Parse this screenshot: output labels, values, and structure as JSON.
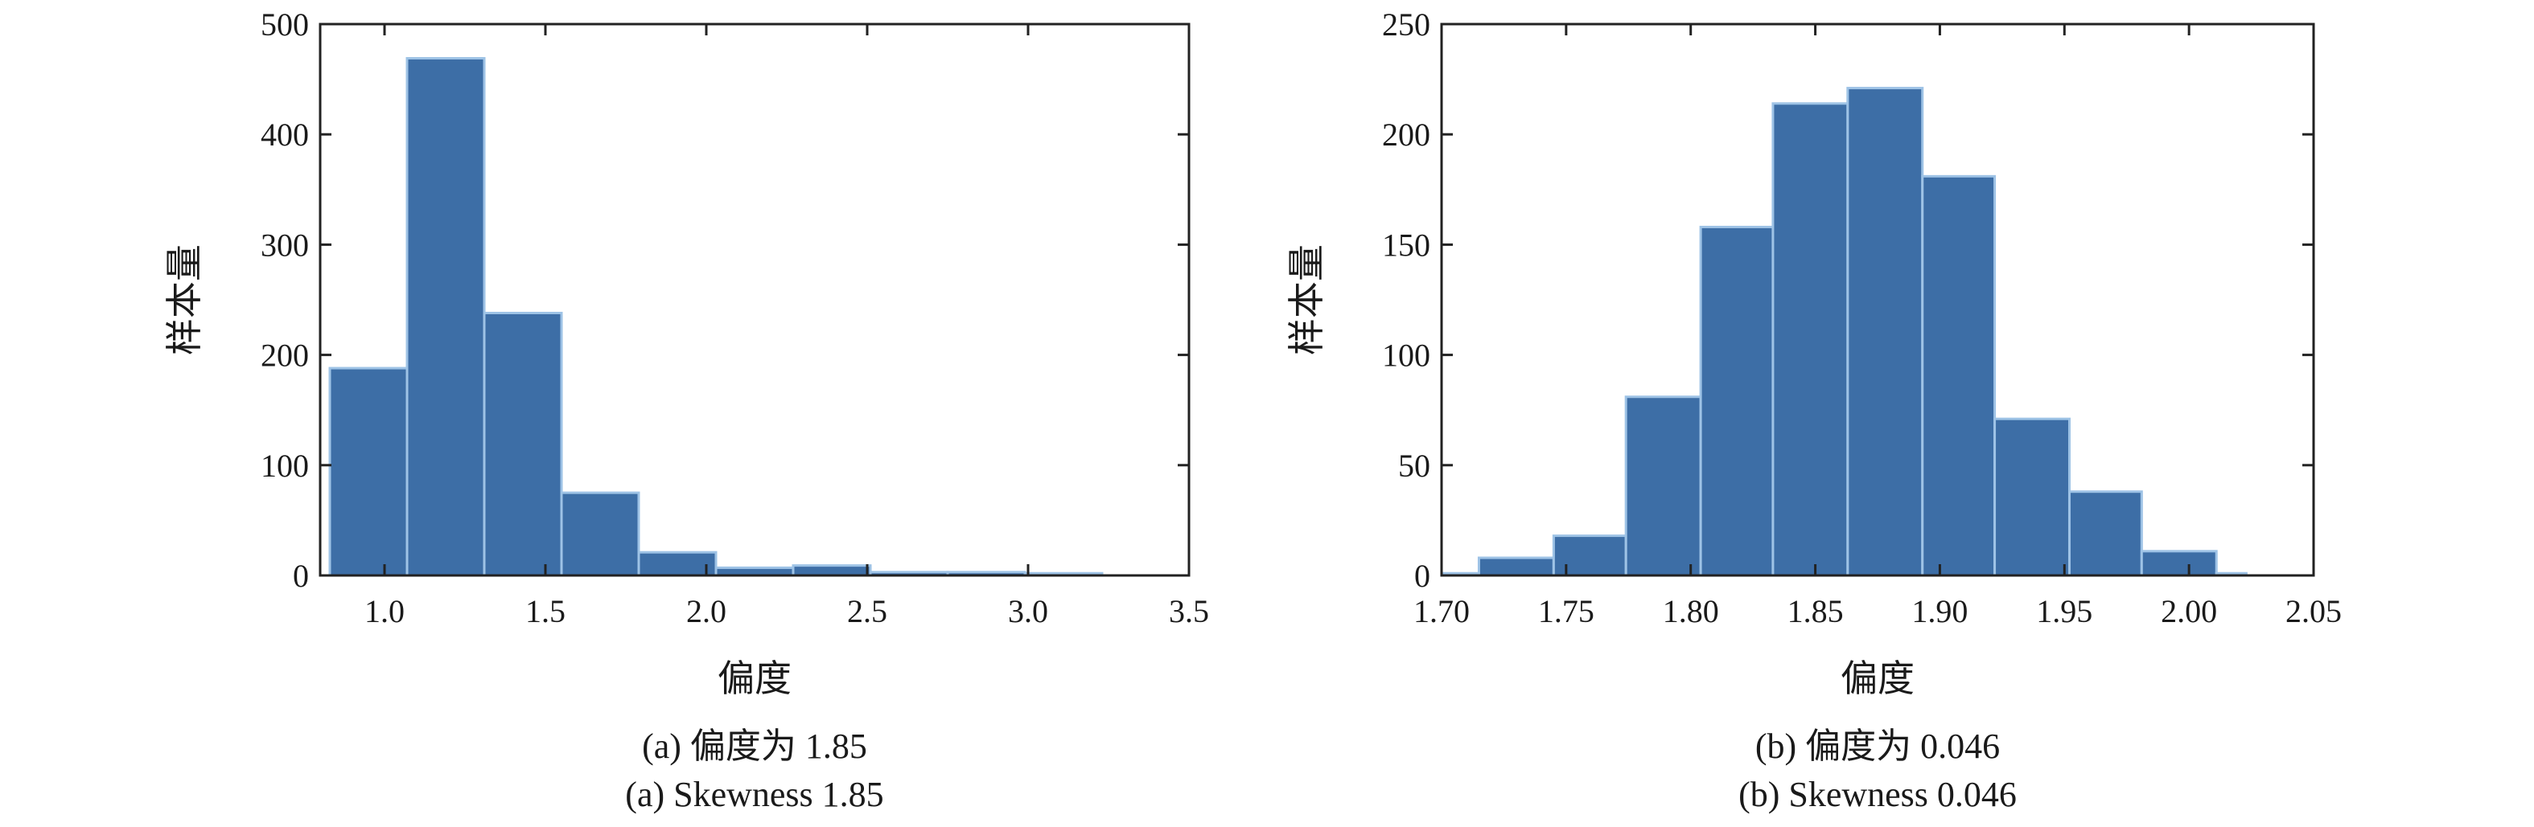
{
  "chart_data": [
    {
      "type": "bar",
      "subtype": "histogram",
      "bar_color": "#3d6ea6",
      "ylabel": "样本量",
      "xlabel": "偏度",
      "caption_cn": "(a) 偏度为 1.85",
      "caption_en": "(a) Skewness 1.85",
      "xlim": [
        0.8,
        3.5
      ],
      "ylim": [
        0,
        500
      ],
      "xticks": [
        "1.0",
        "1.5",
        "2.0",
        "2.5",
        "3.0",
        "3.5"
      ],
      "yticks": [
        "0",
        "100",
        "200",
        "300",
        "400",
        "500"
      ],
      "bins": [
        {
          "x0": 0.83,
          "x1": 1.07,
          "value": 188
        },
        {
          "x0": 1.07,
          "x1": 1.31,
          "value": 469
        },
        {
          "x0": 1.31,
          "x1": 1.55,
          "value": 238
        },
        {
          "x0": 1.55,
          "x1": 1.79,
          "value": 75
        },
        {
          "x0": 1.79,
          "x1": 2.03,
          "value": 21
        },
        {
          "x0": 2.03,
          "x1": 2.27,
          "value": 7
        },
        {
          "x0": 2.27,
          "x1": 2.51,
          "value": 9
        },
        {
          "x0": 2.51,
          "x1": 2.75,
          "value": 3
        },
        {
          "x0": 2.75,
          "x1": 2.99,
          "value": 3
        },
        {
          "x0": 2.99,
          "x1": 3.23,
          "value": 2
        }
      ]
    },
    {
      "type": "bar",
      "subtype": "histogram",
      "bar_color": "#3d6ea6",
      "ylabel": "样本量",
      "xlabel": "偏度",
      "caption_cn": "(b) 偏度为 0.046",
      "caption_en": "(b) Skewness 0.046",
      "xlim": [
        1.7,
        2.05
      ],
      "ylim": [
        0,
        250
      ],
      "xticks": [
        "1.70",
        "1.75",
        "1.80",
        "1.85",
        "1.90",
        "1.95",
        "2.00",
        "2.05"
      ],
      "yticks": [
        "0",
        "50",
        "100",
        "150",
        "200",
        "250"
      ],
      "bins": [
        {
          "x0": 1.7,
          "x1": 1.715,
          "value": 1
        },
        {
          "x0": 1.715,
          "x1": 1.745,
          "value": 8
        },
        {
          "x0": 1.745,
          "x1": 1.774,
          "value": 18
        },
        {
          "x0": 1.774,
          "x1": 1.804,
          "value": 81
        },
        {
          "x0": 1.804,
          "x1": 1.833,
          "value": 158
        },
        {
          "x0": 1.833,
          "x1": 1.863,
          "value": 214
        },
        {
          "x0": 1.863,
          "x1": 1.893,
          "value": 221
        },
        {
          "x0": 1.893,
          "x1": 1.922,
          "value": 181
        },
        {
          "x0": 1.922,
          "x1": 1.952,
          "value": 71
        },
        {
          "x0": 1.952,
          "x1": 1.981,
          "value": 38
        },
        {
          "x0": 1.981,
          "x1": 2.011,
          "value": 11
        },
        {
          "x0": 2.011,
          "x1": 2.023,
          "value": 1
        }
      ]
    }
  ]
}
